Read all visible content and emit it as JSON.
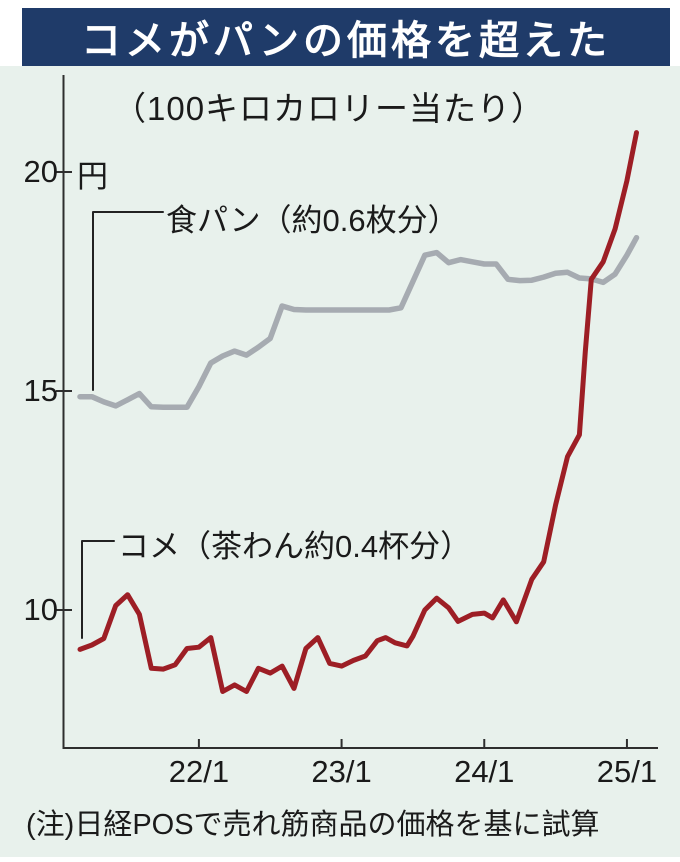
{
  "header": {
    "title": "コメがパンの価格を超えた"
  },
  "footer": {
    "note": "(注)日経POSで売れ筋商品の価格を基に試算"
  },
  "colors": {
    "title_bar_bg": "#1f3b69",
    "title_text": "#ffffff",
    "panel_bg": "#e8f1ec",
    "axis": "#2e2e2e",
    "text": "#1a1a1a",
    "bread_line": "#a6abb1",
    "rice_line": "#9d1e25"
  },
  "chart_data": {
    "type": "line",
    "title": "コメがパンの価格を超えた",
    "subtitle": "（100キロカロリー当たり）",
    "unit_label": "円",
    "grid": false,
    "legend_position": "inline-callouts",
    "x_axis": {
      "description": "monthly time axis, t = months since series start (2021/3), series ends 2025/2",
      "tick_labels": [
        "22/1",
        "23/1",
        "24/1",
        "25/1"
      ],
      "tick_t": [
        10,
        22,
        34,
        46
      ],
      "t_range": [
        0,
        46.8
      ]
    },
    "y_axis": {
      "unit": "円",
      "ticks": [
        20,
        15,
        10
      ],
      "range": [
        7.6,
        21.2
      ]
    },
    "series": [
      {
        "name": "bread",
        "label": "食パン（約0.6枚分）",
        "color": "#a6abb1",
        "points": [
          [
            0,
            14.87
          ],
          [
            1,
            14.87
          ],
          [
            2,
            14.75
          ],
          [
            3,
            14.66
          ],
          [
            4,
            14.8
          ],
          [
            5,
            14.94
          ],
          [
            6,
            14.64
          ],
          [
            7,
            14.63
          ],
          [
            8,
            14.63
          ],
          [
            9,
            14.63
          ],
          [
            10,
            15.1
          ],
          [
            11,
            15.64
          ],
          [
            12,
            15.8
          ],
          [
            13,
            15.91
          ],
          [
            14,
            15.82
          ],
          [
            15,
            16.0
          ],
          [
            16,
            16.2
          ],
          [
            17,
            16.94
          ],
          [
            18,
            16.86
          ],
          [
            19,
            16.85
          ],
          [
            20,
            16.85
          ],
          [
            21,
            16.85
          ],
          [
            22,
            16.85
          ],
          [
            23,
            16.85
          ],
          [
            24,
            16.85
          ],
          [
            25,
            16.85
          ],
          [
            26,
            16.85
          ],
          [
            27,
            16.9
          ],
          [
            28,
            17.5
          ],
          [
            29,
            18.1
          ],
          [
            30,
            18.16
          ],
          [
            31,
            17.93
          ],
          [
            32,
            18.0
          ],
          [
            33,
            17.95
          ],
          [
            34,
            17.9
          ],
          [
            35,
            17.9
          ],
          [
            36,
            17.55
          ],
          [
            37,
            17.52
          ],
          [
            38,
            17.53
          ],
          [
            39,
            17.6
          ],
          [
            40,
            17.69
          ],
          [
            41,
            17.71
          ],
          [
            42,
            17.58
          ],
          [
            43,
            17.56
          ],
          [
            44,
            17.48
          ],
          [
            45,
            17.67
          ],
          [
            46,
            18.1
          ],
          [
            46.8,
            18.5
          ]
        ]
      },
      {
        "name": "rice",
        "label": "コメ（茶わん約0.4杯分）",
        "color": "#9d1e25",
        "points": [
          [
            0,
            9.1
          ],
          [
            1,
            9.2
          ],
          [
            2,
            9.35
          ],
          [
            3,
            10.1
          ],
          [
            4,
            10.35
          ],
          [
            5,
            9.9
          ],
          [
            6,
            8.67
          ],
          [
            7,
            8.65
          ],
          [
            8,
            8.75
          ],
          [
            9,
            9.12
          ],
          [
            10,
            9.15
          ],
          [
            11,
            9.37
          ],
          [
            12,
            8.14
          ],
          [
            13,
            8.29
          ],
          [
            14,
            8.14
          ],
          [
            15,
            8.67
          ],
          [
            16,
            8.56
          ],
          [
            17,
            8.72
          ],
          [
            18,
            8.21
          ],
          [
            19,
            9.12
          ],
          [
            20,
            9.37
          ],
          [
            21,
            8.78
          ],
          [
            22,
            8.72
          ],
          [
            23,
            8.85
          ],
          [
            24,
            8.95
          ],
          [
            25,
            9.3
          ],
          [
            25.7,
            9.37
          ],
          [
            26.5,
            9.25
          ],
          [
            27.5,
            9.18
          ],
          [
            28,
            9.4
          ],
          [
            29,
            10.0
          ],
          [
            30,
            10.27
          ],
          [
            31,
            10.05
          ],
          [
            31.8,
            9.74
          ],
          [
            33,
            9.9
          ],
          [
            34,
            9.93
          ],
          [
            34.7,
            9.82
          ],
          [
            35.6,
            10.23
          ],
          [
            36.7,
            9.73
          ],
          [
            38,
            10.7
          ],
          [
            39,
            11.1
          ],
          [
            40,
            12.4
          ],
          [
            41,
            13.5
          ],
          [
            42,
            14.0
          ],
          [
            42.5,
            15.9
          ],
          [
            43,
            17.55
          ],
          [
            44,
            17.95
          ],
          [
            45,
            18.7
          ],
          [
            46,
            19.8
          ],
          [
            46.8,
            20.9
          ]
        ]
      }
    ]
  }
}
